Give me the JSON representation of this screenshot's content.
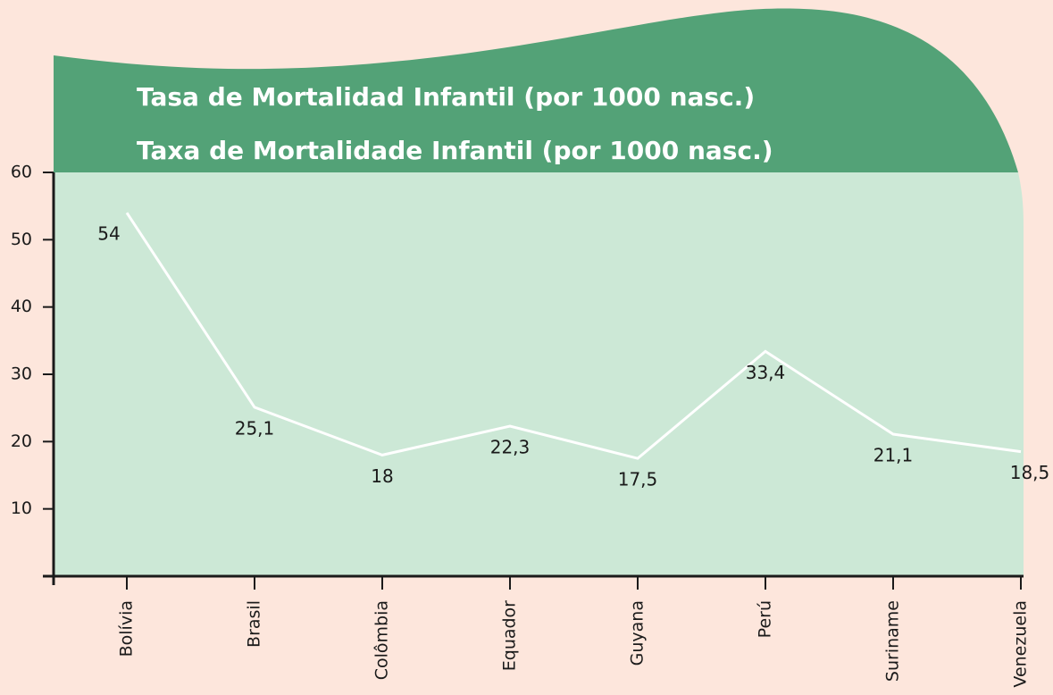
{
  "chart_data": {
    "type": "line",
    "title": "Tasa de Mortalidad Infantil (por 1000 nasc.)",
    "subtitle": "Taxa de Mortalidade Infantil (por 1000 nasc.)",
    "categories": [
      "Bolívia",
      "Brasil",
      "Colômbia",
      "Equador",
      "Guyana",
      "Perú",
      "Suriname",
      "Venezuela"
    ],
    "values": [
      54,
      25.1,
      18,
      22.3,
      17.5,
      33.4,
      21.1,
      18.5
    ],
    "value_labels": [
      "54",
      "25,1",
      "18",
      "22,3",
      "17,5",
      "33,4",
      "21,1",
      "18,5"
    ],
    "color": "#ffffff",
    "ylim": [
      0,
      60
    ],
    "yticks": [
      10,
      20,
      30,
      40,
      50,
      60
    ],
    "grid": false
  }
}
